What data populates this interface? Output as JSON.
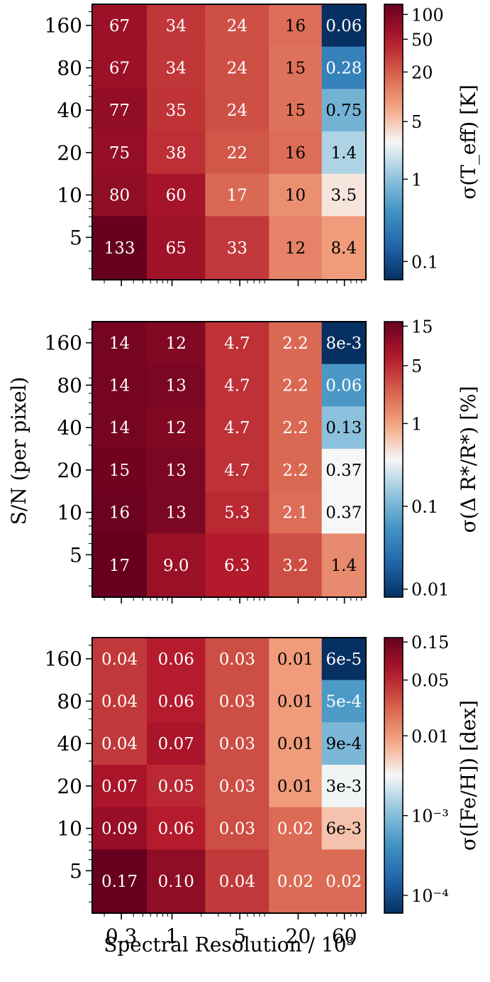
{
  "figure": {
    "shared_xlabel": "Spectral Resolution / 10³",
    "shared_ylabel": "S/N (per pixel)"
  },
  "chart_data": [
    {
      "type": "heatmap",
      "xlabel": "",
      "ylabel": "",
      "colorbar_label": "σ(T_eff) [K]",
      "x": [
        0.3,
        1,
        5,
        20,
        60
      ],
      "x_tick_labels": [
        "0.3",
        "1",
        "5",
        "20",
        "60"
      ],
      "x_tick_labels_shown": false,
      "y": [
        5,
        10,
        20,
        40,
        80,
        160
      ],
      "y_tick_labels": [
        "5",
        "10",
        "20",
        "40",
        "80",
        "160"
      ],
      "x_scale": "log",
      "y_scale": "log",
      "colorbar_scale": "log",
      "colormap": "RdBu_r",
      "colorbar_range": [
        0.06,
        133
      ],
      "colorbar_ticks": [
        "100",
        "50",
        "20",
        "5",
        "1",
        "0.1"
      ],
      "colorbar_tick_values": [
        100,
        50,
        20,
        5,
        1,
        0.1
      ],
      "rows": [
        {
          "y": 160,
          "values": [
            67,
            34,
            24,
            16,
            0.06
          ],
          "labels": [
            "67",
            "34",
            "24",
            "16",
            "0.06"
          ]
        },
        {
          "y": 80,
          "values": [
            67,
            34,
            24,
            15,
            0.28
          ],
          "labels": [
            "67",
            "34",
            "24",
            "15",
            "0.28"
          ]
        },
        {
          "y": 40,
          "values": [
            77,
            35,
            24,
            15,
            0.75
          ],
          "labels": [
            "77",
            "35",
            "24",
            "15",
            "0.75"
          ]
        },
        {
          "y": 20,
          "values": [
            75,
            38,
            22,
            16,
            1.4
          ],
          "labels": [
            "75",
            "38",
            "22",
            "16",
            "1.4"
          ]
        },
        {
          "y": 10,
          "values": [
            80,
            60,
            17,
            10,
            3.5
          ],
          "labels": [
            "80",
            "60",
            "17",
            "10",
            "3.5"
          ]
        },
        {
          "y": 5,
          "values": [
            133,
            65,
            33,
            12,
            8.4
          ],
          "labels": [
            "133",
            "65",
            "33",
            "12",
            "8.4"
          ]
        }
      ]
    },
    {
      "type": "heatmap",
      "xlabel": "",
      "ylabel": "",
      "colorbar_label": "σ(Δ R*/R*) [%]",
      "x": [
        0.3,
        1,
        5,
        20,
        60
      ],
      "x_tick_labels": [
        "0.3",
        "1",
        "5",
        "20",
        "60"
      ],
      "x_tick_labels_shown": false,
      "y": [
        5,
        10,
        20,
        40,
        80,
        160
      ],
      "y_tick_labels": [
        "5",
        "10",
        "20",
        "40",
        "80",
        "160"
      ],
      "x_scale": "log",
      "y_scale": "log",
      "colorbar_scale": "log",
      "colormap": "RdBu_r",
      "colorbar_range": [
        0.008,
        17
      ],
      "colorbar_ticks": [
        "15",
        "5",
        "1",
        "0.1",
        "0.01"
      ],
      "colorbar_tick_values": [
        15,
        5,
        1,
        0.1,
        0.01
      ],
      "rows": [
        {
          "y": 160,
          "values": [
            14,
            12,
            4.7,
            2.2,
            0.008
          ],
          "labels": [
            "14",
            "12",
            "4.7",
            "2.2",
            "8e-3"
          ]
        },
        {
          "y": 80,
          "values": [
            14,
            13,
            4.7,
            2.2,
            0.06
          ],
          "labels": [
            "14",
            "13",
            "4.7",
            "2.2",
            "0.06"
          ]
        },
        {
          "y": 40,
          "values": [
            14,
            12,
            4.7,
            2.2,
            0.13
          ],
          "labels": [
            "14",
            "12",
            "4.7",
            "2.2",
            "0.13"
          ]
        },
        {
          "y": 20,
          "values": [
            15,
            13,
            4.7,
            2.2,
            0.37
          ],
          "labels": [
            "15",
            "13",
            "4.7",
            "2.2",
            "0.37"
          ]
        },
        {
          "y": 10,
          "values": [
            16,
            13,
            5.3,
            2.1,
            0.37
          ],
          "labels": [
            "16",
            "13",
            "5.3",
            "2.1",
            "0.37"
          ]
        },
        {
          "y": 5,
          "values": [
            17,
            9.0,
            6.3,
            3.2,
            1.4
          ],
          "labels": [
            "17",
            "9.0",
            "6.3",
            "3.2",
            "1.4"
          ]
        }
      ]
    },
    {
      "type": "heatmap",
      "xlabel": "Spectral Resolution / 10³",
      "ylabel": "",
      "colorbar_label": "σ([Fe/H]) [dex]",
      "x": [
        0.3,
        1,
        5,
        20,
        60
      ],
      "x_tick_labels": [
        "0.3",
        "1",
        "5",
        "20",
        "60"
      ],
      "x_tick_labels_shown": true,
      "y": [
        5,
        10,
        20,
        40,
        80,
        160
      ],
      "y_tick_labels": [
        "5",
        "10",
        "20",
        "40",
        "80",
        "160"
      ],
      "x_scale": "log",
      "y_scale": "log",
      "colorbar_scale": "log",
      "colormap": "RdBu_r",
      "colorbar_range": [
        6e-05,
        0.17
      ],
      "colorbar_ticks": [
        "0.15",
        "0.05",
        "0.01",
        "10⁻³",
        "10⁻⁴"
      ],
      "colorbar_tick_values": [
        0.15,
        0.05,
        0.01,
        0.001,
        0.0001
      ],
      "rows": [
        {
          "y": 160,
          "values": [
            0.04,
            0.06,
            0.03,
            0.01,
            6e-05
          ],
          "labels": [
            "0.04",
            "0.06",
            "0.03",
            "0.01",
            "6e-5"
          ]
        },
        {
          "y": 80,
          "values": [
            0.04,
            0.06,
            0.03,
            0.01,
            0.0005
          ],
          "labels": [
            "0.04",
            "0.06",
            "0.03",
            "0.01",
            "5e-4"
          ]
        },
        {
          "y": 40,
          "values": [
            0.04,
            0.07,
            0.03,
            0.01,
            0.0009
          ],
          "labels": [
            "0.04",
            "0.07",
            "0.03",
            "0.01",
            "9e-4"
          ]
        },
        {
          "y": 20,
          "values": [
            0.07,
            0.05,
            0.03,
            0.01,
            0.003
          ],
          "labels": [
            "0.07",
            "0.05",
            "0.03",
            "0.01",
            "3e-3"
          ]
        },
        {
          "y": 10,
          "values": [
            0.09,
            0.06,
            0.03,
            0.02,
            0.006
          ],
          "labels": [
            "0.09",
            "0.06",
            "0.03",
            "0.02",
            "6e-3"
          ]
        },
        {
          "y": 5,
          "values": [
            0.17,
            0.1,
            0.04,
            0.02,
            0.02
          ],
          "labels": [
            "0.17",
            "0.10",
            "0.04",
            "0.02",
            "0.02"
          ]
        }
      ]
    }
  ]
}
